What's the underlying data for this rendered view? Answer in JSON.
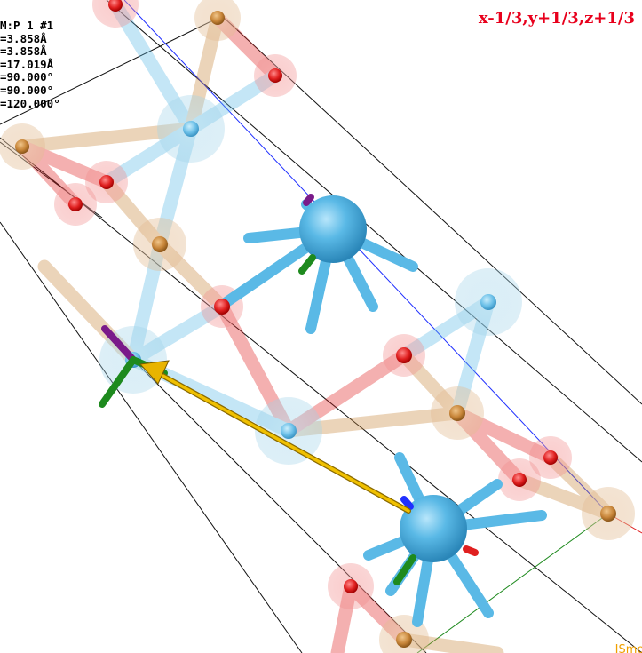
{
  "viewer": {
    "space_group_line": "M:P 1 #1",
    "cell_params": [
      "=3.858Å",
      "=3.858Å",
      "=17.019Å",
      "=90.000°",
      "=90.000°",
      "=120.000°"
    ],
    "symmetry_operation": "x-1/3,y+1/3,z+1/3",
    "watermark": "JSmol"
  },
  "colors": {
    "metal_large": "#5ab9e6",
    "metal_small": "#7cc6ea",
    "oxygen": "#e02020",
    "tan_atom": "#c8863a",
    "cell_edge": "#111111",
    "axis_blue": "#2030ff",
    "axis_green": "#1e8a1e",
    "axis_red": "#e02020",
    "vector_arrow": "#e8b400",
    "sym_text": "#e8001c",
    "watermark": "#f0a000"
  }
}
